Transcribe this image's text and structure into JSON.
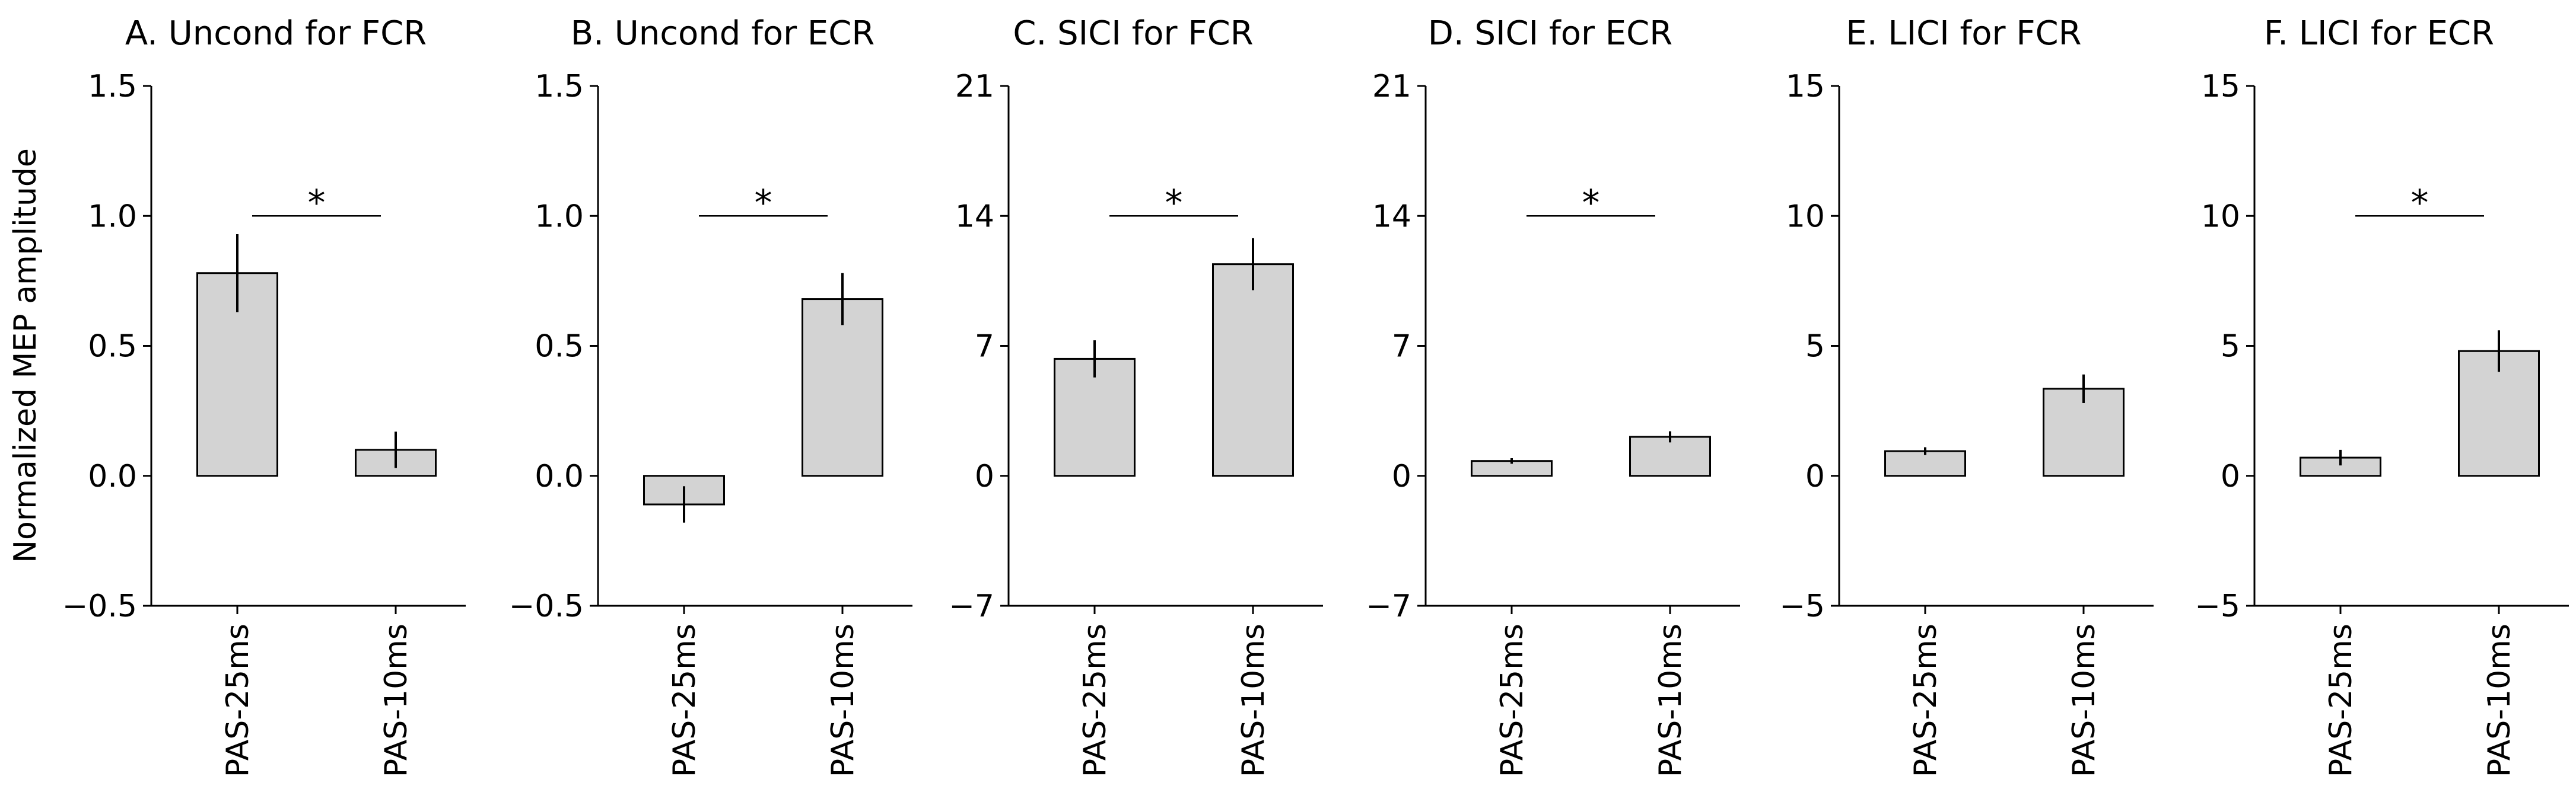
{
  "figure": {
    "ylabel": "Normalized MEP amplitude"
  },
  "colors": {
    "bar_fill": "#d3d3d3",
    "bar_edge": "#000000",
    "axis": "#000000",
    "background": "#ffffff"
  },
  "chart_data": [
    {
      "type": "bar",
      "title": "A. Uncond for FCR",
      "categories": [
        "PAS-25ms",
        "PAS-10ms"
      ],
      "values": [
        0.78,
        0.1
      ],
      "errors": [
        0.15,
        0.07
      ],
      "ylim": [
        -0.5,
        1.5
      ],
      "yticks": [
        -0.5,
        0.0,
        0.5,
        1.0,
        1.5
      ],
      "ytick_labels": [
        "−0.5",
        "0.0",
        "0.5",
        "1.0",
        "1.5"
      ],
      "significance": {
        "y": 1.0,
        "label": "*"
      }
    },
    {
      "type": "bar",
      "title": "B. Uncond for ECR",
      "categories": [
        "PAS-25ms",
        "PAS-10ms"
      ],
      "values": [
        -0.11,
        0.68
      ],
      "errors": [
        0.07,
        0.1
      ],
      "ylim": [
        -0.5,
        1.5
      ],
      "yticks": [
        -0.5,
        0.0,
        0.5,
        1.0,
        1.5
      ],
      "ytick_labels": [
        "−0.5",
        "0.0",
        "0.5",
        "1.0",
        "1.5"
      ],
      "significance": {
        "y": 1.0,
        "label": "*"
      }
    },
    {
      "type": "bar",
      "title": "C. SICI for FCR",
      "categories": [
        "PAS-25ms",
        "PAS-10ms"
      ],
      "values": [
        6.3,
        11.4
      ],
      "errors": [
        1.0,
        1.4
      ],
      "ylim": [
        -7,
        21
      ],
      "yticks": [
        -7,
        0,
        7,
        14,
        21
      ],
      "ytick_labels": [
        "−7",
        "0",
        "7",
        "14",
        "21"
      ],
      "significance": {
        "y": 14,
        "label": "*"
      }
    },
    {
      "type": "bar",
      "title": "D. SICI for ECR",
      "categories": [
        "PAS-25ms",
        "PAS-10ms"
      ],
      "values": [
        0.8,
        2.1
      ],
      "errors": [
        0.15,
        0.3
      ],
      "ylim": [
        -7,
        21
      ],
      "yticks": [
        -7,
        0,
        7,
        14,
        21
      ],
      "ytick_labels": [
        "−7",
        "0",
        "7",
        "14",
        "21"
      ],
      "significance": {
        "y": 14,
        "label": "*"
      }
    },
    {
      "type": "bar",
      "title": "E. LICI for FCR",
      "categories": [
        "PAS-25ms",
        "PAS-10ms"
      ],
      "values": [
        0.95,
        3.35
      ],
      "errors": [
        0.15,
        0.55
      ],
      "ylim": [
        -5,
        15
      ],
      "yticks": [
        -5,
        0,
        5,
        10,
        15
      ],
      "ytick_labels": [
        "−5",
        "0",
        "5",
        "10",
        "15"
      ],
      "significance": null
    },
    {
      "type": "bar",
      "title": "F. LICI for ECR",
      "categories": [
        "PAS-25ms",
        "PAS-10ms"
      ],
      "values": [
        0.7,
        4.8
      ],
      "errors": [
        0.3,
        0.8
      ],
      "ylim": [
        -5,
        15
      ],
      "yticks": [
        -5,
        0,
        5,
        10,
        15
      ],
      "ytick_labels": [
        "−5",
        "0",
        "5",
        "10",
        "15"
      ],
      "significance": {
        "y": 10,
        "label": "*"
      }
    }
  ]
}
